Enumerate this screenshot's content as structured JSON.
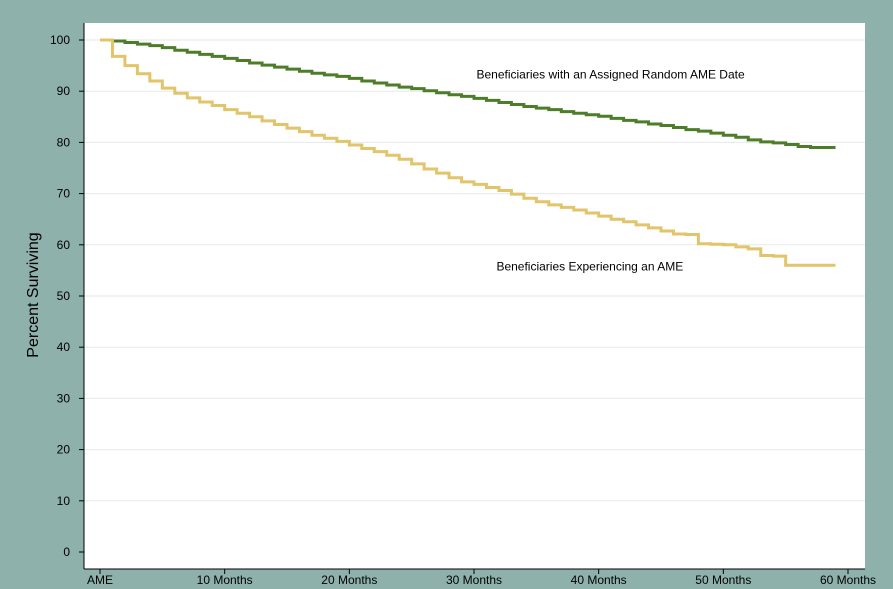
{
  "chart_data": {
    "type": "line",
    "title": "",
    "xlabel": "",
    "ylabel": "Percent Surviving",
    "x_tick_labels": [
      {
        "x": 0,
        "label": "AME"
      },
      {
        "x": 10,
        "label": "10 Months"
      },
      {
        "x": 20,
        "label": "20 Months"
      },
      {
        "x": 30,
        "label": "30 Months"
      },
      {
        "x": 40,
        "label": "40 Months"
      },
      {
        "x": 50,
        "label": "50 Months"
      },
      {
        "x": 60,
        "label": "60 Months"
      }
    ],
    "y_ticks": [
      0,
      10,
      20,
      30,
      40,
      50,
      60,
      70,
      80,
      90,
      100
    ],
    "xlim": [
      0,
      60
    ],
    "ylim": [
      0,
      100
    ],
    "grid": "horizontal",
    "step": true,
    "series": [
      {
        "name": "Beneficiaries with an Assigned Random AME Date",
        "color": "#4e7d2a",
        "label_anchor": {
          "x": 30.2,
          "y": 92.5
        },
        "points": [
          [
            0,
            100
          ],
          [
            1,
            99.8
          ],
          [
            2,
            99.5
          ],
          [
            3,
            99.2
          ],
          [
            4,
            98.9
          ],
          [
            5,
            98.5
          ],
          [
            6,
            98.0
          ],
          [
            7,
            97.6
          ],
          [
            8,
            97.2
          ],
          [
            9,
            96.8
          ],
          [
            10,
            96.4
          ],
          [
            11,
            96.0
          ],
          [
            12,
            95.5
          ],
          [
            13,
            95.1
          ],
          [
            14,
            94.7
          ],
          [
            15,
            94.3
          ],
          [
            16,
            93.9
          ],
          [
            17,
            93.5
          ],
          [
            18,
            93.2
          ],
          [
            19,
            92.9
          ],
          [
            20,
            92.5
          ],
          [
            21,
            92.0
          ],
          [
            22,
            91.6
          ],
          [
            23,
            91.2
          ],
          [
            24,
            90.8
          ],
          [
            25,
            90.5
          ],
          [
            26,
            90.1
          ],
          [
            27,
            89.7
          ],
          [
            28,
            89.3
          ],
          [
            29,
            89.0
          ],
          [
            30,
            88.6
          ],
          [
            31,
            88.2
          ],
          [
            32,
            87.8
          ],
          [
            33,
            87.4
          ],
          [
            34,
            87.0
          ],
          [
            35,
            86.7
          ],
          [
            36,
            86.4
          ],
          [
            37,
            86.0
          ],
          [
            38,
            85.7
          ],
          [
            39,
            85.4
          ],
          [
            40,
            85.1
          ],
          [
            41,
            84.7
          ],
          [
            42,
            84.3
          ],
          [
            43,
            84.0
          ],
          [
            44,
            83.6
          ],
          [
            45,
            83.3
          ],
          [
            46,
            82.9
          ],
          [
            47,
            82.5
          ],
          [
            48,
            82.2
          ],
          [
            49,
            81.8
          ],
          [
            50,
            81.4
          ],
          [
            51,
            81.0
          ],
          [
            52,
            80.5
          ],
          [
            53,
            80.1
          ],
          [
            54,
            79.9
          ],
          [
            55,
            79.6
          ],
          [
            56,
            79.2
          ],
          [
            57,
            79.0
          ],
          [
            58,
            79.0
          ],
          [
            59,
            79.0
          ]
        ]
      },
      {
        "name": "Beneficiaries Experiencing an AME",
        "color": "#e2c46b",
        "label_anchor": {
          "x": 31.8,
          "y": 55.0
        },
        "points": [
          [
            0,
            100
          ],
          [
            1,
            96.8
          ],
          [
            2,
            95.0
          ],
          [
            3,
            93.4
          ],
          [
            4,
            92.0
          ],
          [
            5,
            90.6
          ],
          [
            6,
            89.6
          ],
          [
            7,
            88.7
          ],
          [
            8,
            87.9
          ],
          [
            9,
            87.2
          ],
          [
            10,
            86.4
          ],
          [
            11,
            85.7
          ],
          [
            12,
            85.0
          ],
          [
            13,
            84.2
          ],
          [
            14,
            83.5
          ],
          [
            15,
            82.8
          ],
          [
            16,
            82.1
          ],
          [
            17,
            81.4
          ],
          [
            18,
            80.8
          ],
          [
            19,
            80.2
          ],
          [
            20,
            79.5
          ],
          [
            21,
            78.8
          ],
          [
            22,
            78.2
          ],
          [
            23,
            77.5
          ],
          [
            24,
            76.7
          ],
          [
            25,
            75.8
          ],
          [
            26,
            74.8
          ],
          [
            27,
            74.0
          ],
          [
            28,
            73.1
          ],
          [
            29,
            72.3
          ],
          [
            30,
            71.8
          ],
          [
            31,
            71.2
          ],
          [
            32,
            70.6
          ],
          [
            33,
            69.9
          ],
          [
            34,
            69.1
          ],
          [
            35,
            68.4
          ],
          [
            36,
            67.8
          ],
          [
            37,
            67.3
          ],
          [
            38,
            66.8
          ],
          [
            39,
            66.2
          ],
          [
            40,
            65.6
          ],
          [
            41,
            65.0
          ],
          [
            42,
            64.5
          ],
          [
            43,
            63.9
          ],
          [
            44,
            63.3
          ],
          [
            45,
            62.7
          ],
          [
            46,
            62.1
          ],
          [
            47,
            62.0
          ],
          [
            48,
            60.2
          ],
          [
            49,
            60.1
          ],
          [
            50,
            60.0
          ],
          [
            51,
            59.6
          ],
          [
            52,
            59.2
          ],
          [
            53,
            57.9
          ],
          [
            54,
            57.8
          ],
          [
            55,
            56.0
          ],
          [
            56,
            56.0
          ],
          [
            57,
            56.0
          ],
          [
            58,
            56.0
          ],
          [
            59,
            56.0
          ]
        ]
      }
    ]
  }
}
